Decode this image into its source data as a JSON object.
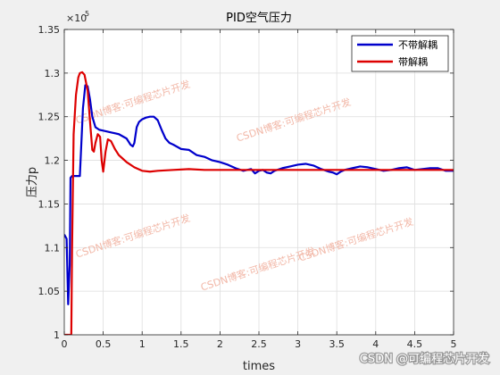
{
  "chart_data": {
    "type": "line",
    "title": "PID空气压力",
    "xlabel": "times",
    "ylabel": "压力p",
    "xlim": [
      0,
      5
    ],
    "ylim": [
      100000,
      135000
    ],
    "y_exponent_label": "×10",
    "y_exponent_power": "5",
    "xticks": [
      0,
      0.5,
      1,
      1.5,
      2,
      2.5,
      3,
      3.5,
      4,
      4.5,
      5
    ],
    "xtick_labels": [
      "0",
      "0.5",
      "1",
      "1.5",
      "2",
      "2.5",
      "3",
      "3.5",
      "4",
      "4.5",
      "5"
    ],
    "yticks": [
      100000,
      105000,
      110000,
      115000,
      120000,
      125000,
      130000,
      135000
    ],
    "ytick_labels": [
      "1",
      "1.05",
      "1.1",
      "1.15",
      "1.2",
      "1.25",
      "1.3",
      "1.35"
    ],
    "grid": true,
    "legend_position": "top-right",
    "series": [
      {
        "name": "不带解耦",
        "color": "#0000cc",
        "x": [
          0,
          0.03,
          0.05,
          0.07,
          0.08,
          0.1,
          0.11,
          0.13,
          0.2,
          0.24,
          0.27,
          0.3,
          0.33,
          0.36,
          0.4,
          0.45,
          0.5,
          0.6,
          0.7,
          0.8,
          0.85,
          0.88,
          0.9,
          0.93,
          0.96,
          1.0,
          1.05,
          1.1,
          1.15,
          1.2,
          1.25,
          1.3,
          1.35,
          1.4,
          1.5,
          1.6,
          1.7,
          1.8,
          1.9,
          2.0,
          2.1,
          2.2,
          2.3,
          2.35,
          2.4,
          2.45,
          2.5,
          2.55,
          2.6,
          2.65,
          2.7,
          2.8,
          2.9,
          3.0,
          3.1,
          3.2,
          3.3,
          3.4,
          3.45,
          3.5,
          3.55,
          3.6,
          3.7,
          3.8,
          3.9,
          4.0,
          4.1,
          4.2,
          4.3,
          4.4,
          4.5,
          4.6,
          4.7,
          4.8,
          4.9,
          5.0
        ],
        "y": [
          111500,
          111000,
          103500,
          108000,
          118000,
          118200,
          118200,
          118200,
          118200,
          126000,
          128600,
          128500,
          127000,
          125000,
          123800,
          123500,
          123400,
          123200,
          123000,
          122500,
          121800,
          121600,
          122000,
          123800,
          124400,
          124700,
          124900,
          125000,
          125000,
          124600,
          123500,
          122500,
          122000,
          121800,
          121300,
          121200,
          120600,
          120400,
          120000,
          119800,
          119500,
          119100,
          118800,
          118900,
          119000,
          118500,
          118800,
          118900,
          118600,
          118500,
          118800,
          119100,
          119300,
          119500,
          119600,
          119400,
          119000,
          118700,
          118600,
          118400,
          118700,
          118900,
          119100,
          119300,
          119200,
          119000,
          118800,
          118900,
          119100,
          119200,
          118900,
          119000,
          119100,
          119100,
          118800,
          118800
        ]
      },
      {
        "name": "带解耦",
        "color": "#dd0000",
        "x": [
          0,
          0.09,
          0.1,
          0.12,
          0.15,
          0.18,
          0.2,
          0.23,
          0.26,
          0.3,
          0.33,
          0.36,
          0.38,
          0.4,
          0.43,
          0.46,
          0.48,
          0.5,
          0.53,
          0.56,
          0.6,
          0.65,
          0.7,
          0.75,
          0.8,
          0.9,
          1.0,
          1.1,
          1.2,
          1.4,
          1.6,
          1.8,
          2.0,
          2.5,
          3.0,
          3.5,
          4.0,
          4.5,
          5.0
        ],
        "y": [
          100000,
          100000,
          110000,
          123000,
          127500,
          129500,
          130000,
          130100,
          129800,
          128000,
          124500,
          121200,
          121000,
          122000,
          123000,
          122700,
          120000,
          118700,
          121000,
          122400,
          122200,
          121300,
          120600,
          120200,
          119800,
          119200,
          118800,
          118700,
          118800,
          118900,
          119000,
          118900,
          118900,
          118900,
          118900,
          118900,
          118900,
          118900,
          118900
        ]
      }
    ],
    "watermarks": [
      "CSDN博客:可编程芯片开发",
      "CSDN博客:可编程芯片开发",
      "CSDN博客:可编程芯片开发",
      "CSDN博客:可编程芯片开发",
      "CSDN博客:可编程芯片开发"
    ],
    "credit": "CSDN @可编程芯片开发"
  }
}
